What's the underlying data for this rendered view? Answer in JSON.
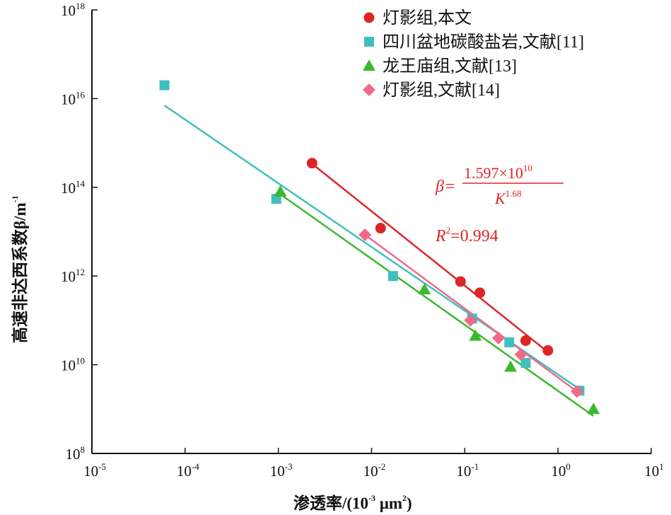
{
  "chart_data": {
    "type": "scatter",
    "title": "",
    "xscale": "log",
    "yscale": "log",
    "xlim": [
      1e-05,
      10
    ],
    "ylim": [
      100000000.0,
      1e+18
    ],
    "xlabel": "渗透率/(10",
    "xlabel_exp": "-3",
    "xlabel_unit": " μm",
    "xlabel_unit_exp": "2",
    "xlabel_close": ")",
    "ylabel": "高速非达西系数β/m",
    "ylabel_exp": "-1",
    "x_ticks": [
      {
        "base": "10",
        "exp": "-5",
        "value": 1e-05
      },
      {
        "base": "10",
        "exp": "-4",
        "value": 0.0001
      },
      {
        "base": "10",
        "exp": "-3",
        "value": 0.001
      },
      {
        "base": "10",
        "exp": "-2",
        "value": 0.01
      },
      {
        "base": "10",
        "exp": "-1",
        "value": 0.1
      },
      {
        "base": "10",
        "exp": "0",
        "value": 1
      },
      {
        "base": "10",
        "exp": "1",
        "value": 10
      }
    ],
    "y_ticks": [
      {
        "base": "10",
        "exp": "8",
        "value": 100000000.0
      },
      {
        "base": "10",
        "exp": "10",
        "value": 10000000000.0
      },
      {
        "base": "10",
        "exp": "12",
        "value": 1000000000000.0
      },
      {
        "base": "10",
        "exp": "14",
        "value": 100000000000000.0
      },
      {
        "base": "10",
        "exp": "16",
        "value": 1e+16
      },
      {
        "base": "10",
        "exp": "18",
        "value": 1e+18
      }
    ],
    "series": [
      {
        "name": "灯影组,本文",
        "color": "#dc2626",
        "marker": "circle",
        "points": [
          [
            0.0023,
            350000000000000.0
          ],
          [
            0.0125,
            12000000000000.0
          ],
          [
            0.09,
            750000000000.0
          ],
          [
            0.145,
            420000000000.0
          ],
          [
            0.45,
            35000000000.0
          ],
          [
            0.78,
            21000000000.0
          ]
        ],
        "fit": [
          [
            0.0023,
            340000000000000.0
          ],
          [
            0.8,
            18500000000.0
          ]
        ]
      },
      {
        "name": "四川盆地碳酸盐岩,文献[11]",
        "color": "#3fbfbf",
        "marker": "square",
        "points": [
          [
            6e-05,
            2e+16
          ],
          [
            0.00095,
            55000000000000.0
          ],
          [
            0.017,
            1000000000000.0
          ],
          [
            0.12,
            110000000000.0
          ],
          [
            0.3,
            32000000000.0
          ],
          [
            0.45,
            11000000000.0
          ],
          [
            1.7,
            2600000000.0
          ]
        ],
        "fit": [
          [
            6e-05,
            7000000000000000.0
          ],
          [
            1.8,
            2600000000.0
          ]
        ]
      },
      {
        "name": "龙王庙组,文献[13]",
        "color": "#3cb82e",
        "marker": "triangle",
        "points": [
          [
            0.00105,
            80000000000000.0
          ],
          [
            0.037,
            500000000000.0
          ],
          [
            0.13,
            45000000000.0
          ],
          [
            0.31,
            9000000000.0
          ],
          [
            2.4,
            1000000000.0
          ]
        ],
        "fit": [
          [
            0.001,
            75000000000000.0
          ],
          [
            2.4,
            700000000.0
          ]
        ]
      },
      {
        "name": "灯影组,文献[14]",
        "color": "#f06a87",
        "marker": "diamond",
        "points": [
          [
            0.0085,
            8500000000000.0
          ],
          [
            0.115,
            100000000000.0
          ],
          [
            0.23,
            40000000000.0
          ],
          [
            0.4,
            17000000000.0
          ],
          [
            1.6,
            2500000000.0
          ]
        ],
        "fit": [
          [
            0.0085,
            8500000000000.0
          ],
          [
            1.6,
            2500000000.0
          ]
        ]
      }
    ],
    "annotation": {
      "symbol": "β=",
      "numerator": "1.597×10",
      "numerator_exp": "10",
      "denominator": "K",
      "denominator_exp": "1.68",
      "r2_label": "R",
      "r2_exp": "2",
      "r2_value": "=0.994",
      "color": "#dc2626"
    },
    "legend_position": "top-right"
  }
}
